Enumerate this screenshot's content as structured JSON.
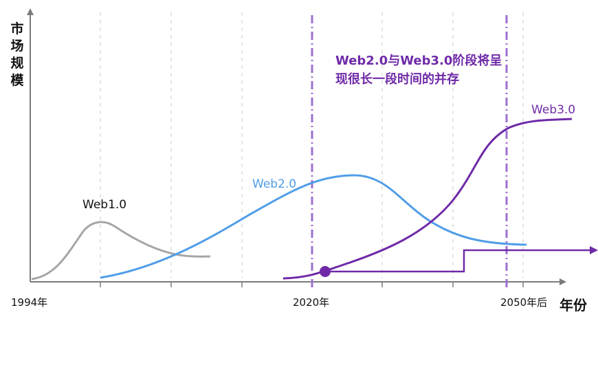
{
  "chart_data": {
    "type": "line",
    "title": "",
    "xlabel": "年份",
    "ylabel": "市场规模",
    "x_ticks": [
      "1994年",
      "2020年",
      "2050年后"
    ],
    "annotation": "Web2.0与Web3.0阶段将呈现很长一段时间的并存",
    "series": [
      {
        "name": "Web1.0",
        "color": "#a6a6a6"
      },
      {
        "name": "Web2.0",
        "color": "#4f9de8"
      },
      {
        "name": "Web3.0",
        "color": "#6f2aa8"
      }
    ],
    "grid": "vertical-dashed",
    "colors": {
      "divider": "#9d6fd0",
      "axis": "#7a7a7a"
    }
  }
}
